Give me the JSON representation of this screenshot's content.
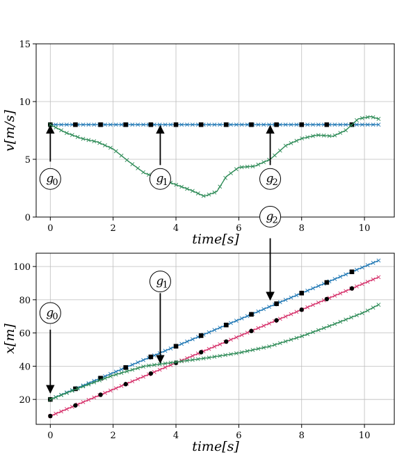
{
  "colors": {
    "blue": "#1f77b4",
    "green": "#2e8b57",
    "crimson": "#d6336c",
    "marker": "#000000",
    "grid": "#bdbdbd"
  },
  "chart_data": [
    {
      "type": "line",
      "title": "",
      "xlabel": "time[s]",
      "ylabel": "v[m/s]",
      "xlim": [
        -0.45,
        10.95
      ],
      "ylim": [
        0,
        15
      ],
      "xticks": [
        0,
        2,
        4,
        6,
        8,
        10
      ],
      "yticks": [
        0,
        5,
        10,
        15
      ],
      "grid": true,
      "series": [
        {
          "color": "blue",
          "style": "line-x",
          "x": [
            0,
            10.45
          ],
          "y": [
            8,
            8
          ],
          "squares_x": [
            0,
            0.8,
            1.6,
            2.4,
            3.2,
            4.0,
            4.8,
            5.6,
            6.4,
            7.2,
            8.0,
            8.8,
            9.6
          ],
          "squares_y": [
            8,
            8,
            8,
            8,
            8,
            8,
            8,
            8,
            8,
            8,
            8,
            8,
            8
          ]
        },
        {
          "color": "green",
          "style": "line-x",
          "x": [
            0,
            0.5,
            1.0,
            1.5,
            2.0,
            2.5,
            3.0,
            3.5,
            4.0,
            4.5,
            4.9,
            5.3,
            5.6,
            6.0,
            6.5,
            7.0,
            7.5,
            8.0,
            8.5,
            9.0,
            9.4,
            9.8,
            10.2,
            10.45
          ],
          "y": [
            8.0,
            7.3,
            6.8,
            6.5,
            5.9,
            4.8,
            3.8,
            3.3,
            2.8,
            2.3,
            1.8,
            2.2,
            3.5,
            4.3,
            4.4,
            5.0,
            6.2,
            6.8,
            7.1,
            7.0,
            7.5,
            8.5,
            8.7,
            8.5
          ]
        }
      ],
      "annotations": [
        {
          "label": "g",
          "sub": "0",
          "x": 0,
          "arrow_from": 4.8,
          "arrow_to": 7.9,
          "circle_y": 3.3
        },
        {
          "label": "g",
          "sub": "1",
          "x": 3.5,
          "arrow_from": 4.5,
          "arrow_to": 7.9,
          "circle_y": 3.3
        },
        {
          "label": "g",
          "sub": "2",
          "x": 7.0,
          "arrow_from": 4.5,
          "arrow_to": 7.9,
          "circle_y": 3.3
        }
      ]
    },
    {
      "type": "line",
      "title": "",
      "xlabel": "time[s]",
      "ylabel": "x[m]",
      "xlim": [
        -0.45,
        10.95
      ],
      "ylim": [
        5,
        108
      ],
      "xticks": [
        0,
        2,
        4,
        6,
        8,
        10
      ],
      "yticks": [
        20,
        40,
        60,
        80,
        100
      ],
      "grid": true,
      "series": [
        {
          "color": "blue",
          "style": "line-x",
          "x": [
            0,
            10.45
          ],
          "y": [
            20,
            103.6
          ],
          "squares_x": [
            0,
            0.8,
            1.6,
            2.4,
            3.2,
            4.0,
            4.8,
            5.6,
            6.4,
            7.2,
            8.0,
            8.8,
            9.6
          ],
          "squares_y": [
            20.0,
            26.4,
            32.8,
            39.2,
            45.6,
            52.0,
            58.4,
            64.8,
            71.2,
            77.6,
            84.0,
            90.4,
            96.8
          ]
        },
        {
          "color": "crimson",
          "style": "line-x",
          "x": [
            0,
            10.45
          ],
          "y": [
            10,
            93.6
          ],
          "dots_x": [
            0,
            0.8,
            1.6,
            2.4,
            3.2,
            4.0,
            4.8,
            5.6,
            6.4,
            7.2,
            8.0,
            8.8,
            9.6
          ],
          "dots_y": [
            10.0,
            16.4,
            22.8,
            29.2,
            35.6,
            42.0,
            48.4,
            54.8,
            61.2,
            67.6,
            74.0,
            80.4,
            86.8
          ]
        },
        {
          "color": "green",
          "style": "line-x",
          "x": [
            0,
            1.0,
            2.0,
            3.0,
            4.0,
            5.0,
            6.0,
            7.0,
            8.0,
            9.0,
            10.0,
            10.45
          ],
          "y": [
            20,
            27.5,
            34.5,
            40.0,
            42.5,
            45.0,
            48.0,
            52.0,
            58.0,
            65.0,
            72.5,
            77.0
          ]
        }
      ],
      "annotations": [
        {
          "label": "g",
          "sub": "0",
          "x": 0,
          "arrow_from": 62,
          "arrow_to": 24,
          "circle_y": 72
        },
        {
          "label": "g",
          "sub": "1",
          "x": 3.5,
          "arrow_from": 84,
          "arrow_to": 42,
          "circle_y": 91
        },
        {
          "label": "g",
          "sub": "2",
          "x": 7.0,
          "arrow_from": 117,
          "arrow_to": 80,
          "circle_y": 130
        }
      ]
    }
  ]
}
